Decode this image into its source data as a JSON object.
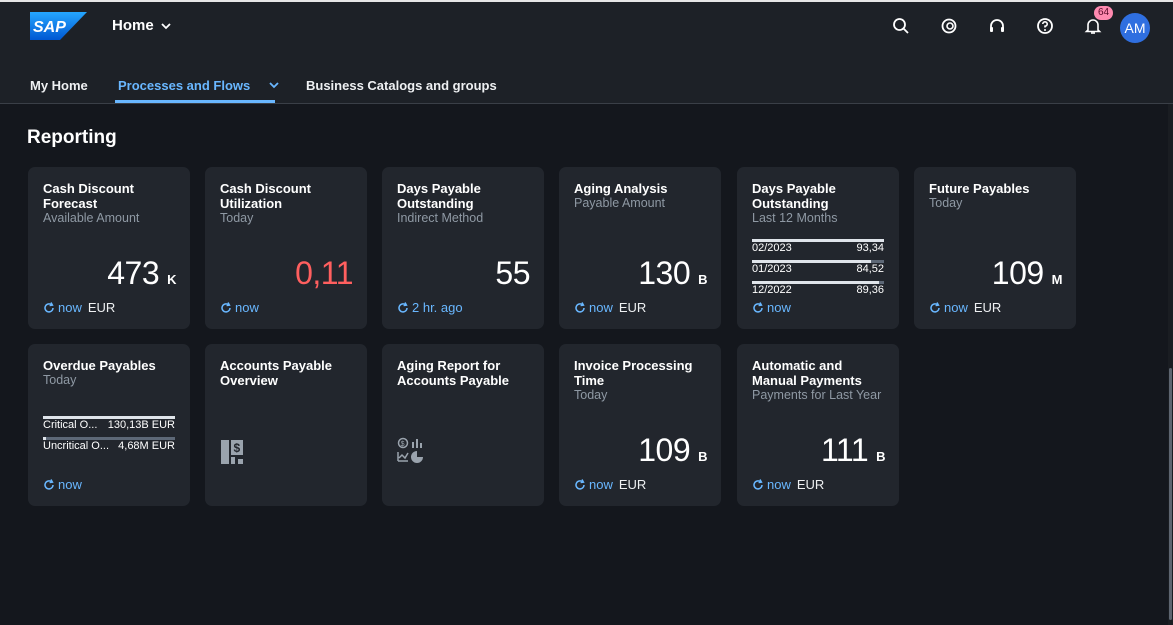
{
  "shell": {
    "logo_text": "SAP",
    "home_label": "Home",
    "notification_count": "64",
    "avatar_initials": "AM",
    "icons": [
      "search-icon",
      "joule-icon",
      "headset-icon",
      "help-icon",
      "bell-icon"
    ]
  },
  "tabs": [
    {
      "label": "My Home",
      "active": false
    },
    {
      "label": "Processes and Flows",
      "active": true
    },
    {
      "label": "Business Catalogs and groups",
      "active": false
    }
  ],
  "section": {
    "title": "Reporting"
  },
  "colors": {
    "accent": "#69b7ff",
    "critical": "#ff5f5f",
    "tile_bg": "#22262d",
    "page_bg": "#14171d"
  },
  "tiles": [
    {
      "title": "Cash Discount Forecast",
      "subtitle": "Available Amount",
      "value": "473",
      "scale": "K",
      "refresh": "now",
      "unit": "EUR"
    },
    {
      "title": "Cash Discount Utilization",
      "subtitle": "Today",
      "value": "0,11",
      "refresh": "now"
    },
    {
      "title": "Days Payable Outstanding",
      "subtitle": "Indirect Method",
      "value": "55",
      "refresh": "2 hr. ago"
    },
    {
      "title": "Aging Analysis",
      "subtitle": "Payable Amount",
      "value": "130",
      "scale": "B",
      "refresh": "now",
      "unit": "EUR"
    },
    {
      "title": "Days Payable Outstanding",
      "subtitle": "Last 12 Months",
      "refresh": "now",
      "rows": [
        {
          "label": "02/2023",
          "value": "93,34",
          "fill": 1.0
        },
        {
          "label": "01/2023",
          "value": "84,52",
          "fill": 0.9
        },
        {
          "label": "12/2022",
          "value": "89,36",
          "fill": 0.96
        }
      ]
    },
    {
      "title": "Future Payables",
      "subtitle": "Today",
      "value": "109",
      "scale": "M",
      "refresh": "now",
      "unit": "EUR"
    },
    {
      "title": "Overdue Payables",
      "subtitle": "Today",
      "refresh": "now",
      "rows": [
        {
          "label": "Critical O...",
          "value": "130,13B EUR",
          "fill": 1.0
        },
        {
          "label": "Uncritical O...",
          "value": "4,68M EUR",
          "fill": 0.02
        }
      ]
    },
    {
      "title": "Accounts Payable Overview",
      "icon": "document-dollar-icon"
    },
    {
      "title": "Aging Report for Accounts Payable",
      "icon": "analytics-icon"
    },
    {
      "title": "Invoice Processing Time",
      "subtitle": "Today",
      "value": "109",
      "scale": "B",
      "refresh": "now",
      "unit": "EUR"
    },
    {
      "title": "Automatic and Manual Payments",
      "subtitle": "Payments for Last Year",
      "value": "111",
      "scale": "B",
      "refresh": "now",
      "unit": "EUR"
    }
  ]
}
